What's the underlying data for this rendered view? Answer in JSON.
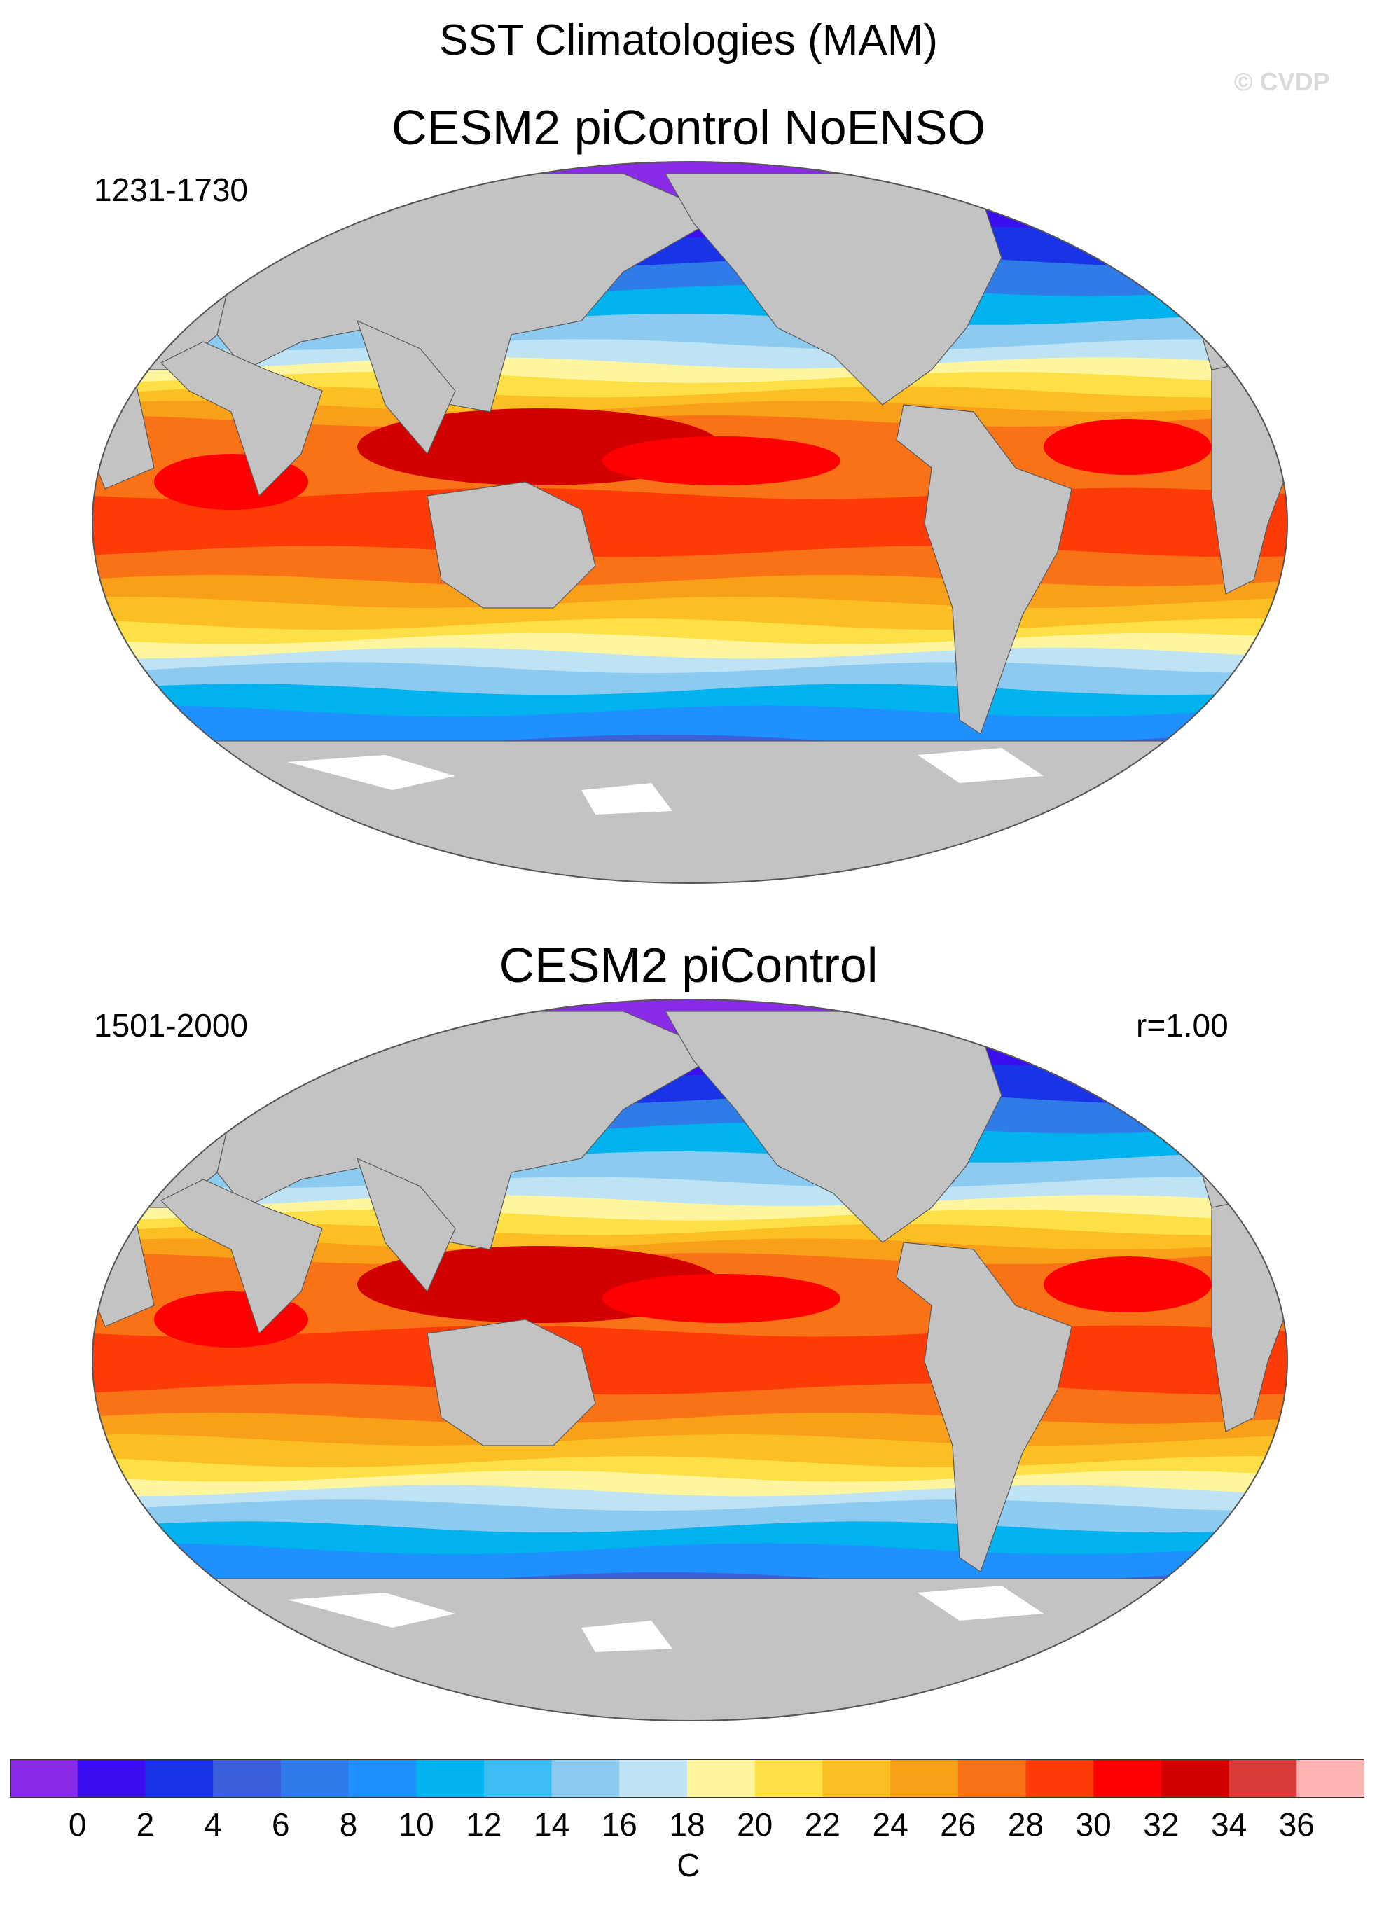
{
  "title": "SST Climatologies (MAM)",
  "watermark": "© CVDP",
  "panels": [
    {
      "title": "CESM2 piControl NoENSO",
      "period": "1231-1730",
      "corr": ""
    },
    {
      "title": "CESM2 piControl",
      "period": "1501-2000",
      "corr": "r=1.00"
    }
  ],
  "colorbar": {
    "units": "C",
    "ticks": [
      "0",
      "2",
      "4",
      "6",
      "8",
      "10",
      "12",
      "14",
      "16",
      "18",
      "20",
      "22",
      "24",
      "26",
      "28",
      "30",
      "32",
      "34",
      "36"
    ],
    "colors": [
      "#8a2be8",
      "#3a0ef0",
      "#1a33e6",
      "#3d5fd9",
      "#2f7be8",
      "#1e90ff",
      "#00b2ee",
      "#3fbcf2",
      "#8ccaf0",
      "#bde3f5",
      "#fff59e",
      "#fde047",
      "#fbbf24",
      "#f9a01b",
      "#f97316",
      "#fd3b06",
      "#ff0000",
      "#d30000",
      "#d93a3a",
      "#ffb3b3"
    ]
  },
  "map": {
    "land_color": "#c3c3c3",
    "ice_color": "#ffffff",
    "outline_color": "#555555"
  }
}
